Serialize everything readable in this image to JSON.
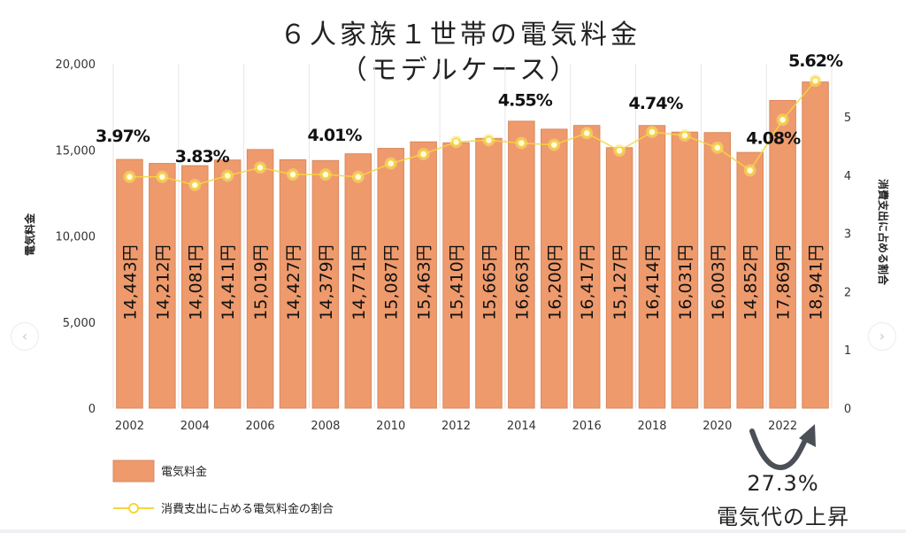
{
  "chart_data": {
    "type": "bar",
    "title": "６人家族１世帯の電気料金",
    "subtitle": "（モデルケース）",
    "categories": [
      "2002",
      "2003",
      "2004",
      "2005",
      "2006",
      "2007",
      "2008",
      "2009",
      "2010",
      "2011",
      "2012",
      "2013",
      "2014",
      "2015",
      "2016",
      "2017",
      "2018",
      "2019",
      "2020",
      "2021",
      "2022",
      "2023"
    ],
    "x_tick_labels": [
      "2002",
      "2004",
      "2006",
      "2008",
      "2010",
      "2012",
      "2014",
      "2016",
      "2018",
      "2020",
      "2022"
    ],
    "series": [
      {
        "name": "電気料金",
        "type": "bar",
        "axis": "left",
        "color": "#ee9a6c",
        "values": [
          14443,
          14212,
          14081,
          14411,
          15019,
          14427,
          14379,
          14771,
          15087,
          15463,
          15410,
          15665,
          16663,
          16200,
          16417,
          15127,
          16414,
          16031,
          16003,
          14852,
          17869,
          18941
        ],
        "labels": [
          "14,443円",
          "14,212円",
          "14,081円",
          "14,411円",
          "15,019円",
          "14,427円",
          "14,379円",
          "14,771円",
          "15,087円",
          "15,463円",
          "15,410円",
          "15,665円",
          "16,663円",
          "16,200円",
          "16,417円",
          "15,127円",
          "16,414円",
          "16,031円",
          "16,003円",
          "14,852円",
          "17,869円",
          "18,941円"
        ]
      },
      {
        "name": "消費支出に占める電気料金の割合",
        "type": "line",
        "axis": "right",
        "color": "#f5d63c",
        "values": [
          3.97,
          3.97,
          3.83,
          3.99,
          4.13,
          4.01,
          4.01,
          3.97,
          4.2,
          4.36,
          4.57,
          4.6,
          4.55,
          4.52,
          4.72,
          4.42,
          4.74,
          4.68,
          4.47,
          4.08,
          4.95,
          5.62
        ]
      }
    ],
    "point_annotations": [
      {
        "category": "2002",
        "text": "3.97%"
      },
      {
        "category": "2004",
        "text": "3.83%"
      },
      {
        "category": "2008",
        "text": "4.01%"
      },
      {
        "category": "2014",
        "text": "4.55%"
      },
      {
        "category": "2018",
        "text": "4.74%"
      },
      {
        "category": "2021",
        "text": "4.08%"
      },
      {
        "category": "2023",
        "text": "5.62%"
      }
    ],
    "ylabel": "電気料金",
    "y2label": "消費支出に占める割合",
    "ylim": [
      0,
      20000
    ],
    "yticks": [
      "0",
      "5,000",
      "10,000",
      "15,000",
      "20,000"
    ],
    "ytick_values": [
      0,
      5000,
      10000,
      15000,
      20000
    ],
    "y2lim": [
      0,
      5.9
    ],
    "y2ticks": [
      "0",
      "1",
      "2",
      "3",
      "4",
      "5"
    ],
    "y2tick_values": [
      0,
      1,
      2,
      3,
      4,
      5
    ],
    "grid": "vertical",
    "legend": {
      "position": "bottom-left",
      "items": [
        "電気料金",
        "消費支出に占める電気料金の割合"
      ]
    }
  },
  "annotation": {
    "value": "27.3%",
    "text": "電気代の上昇"
  },
  "nav": {
    "prev_icon": "chevron-left-icon",
    "next_icon": "chevron-right-icon",
    "prev_glyph": "‹",
    "next_glyph": "›"
  }
}
